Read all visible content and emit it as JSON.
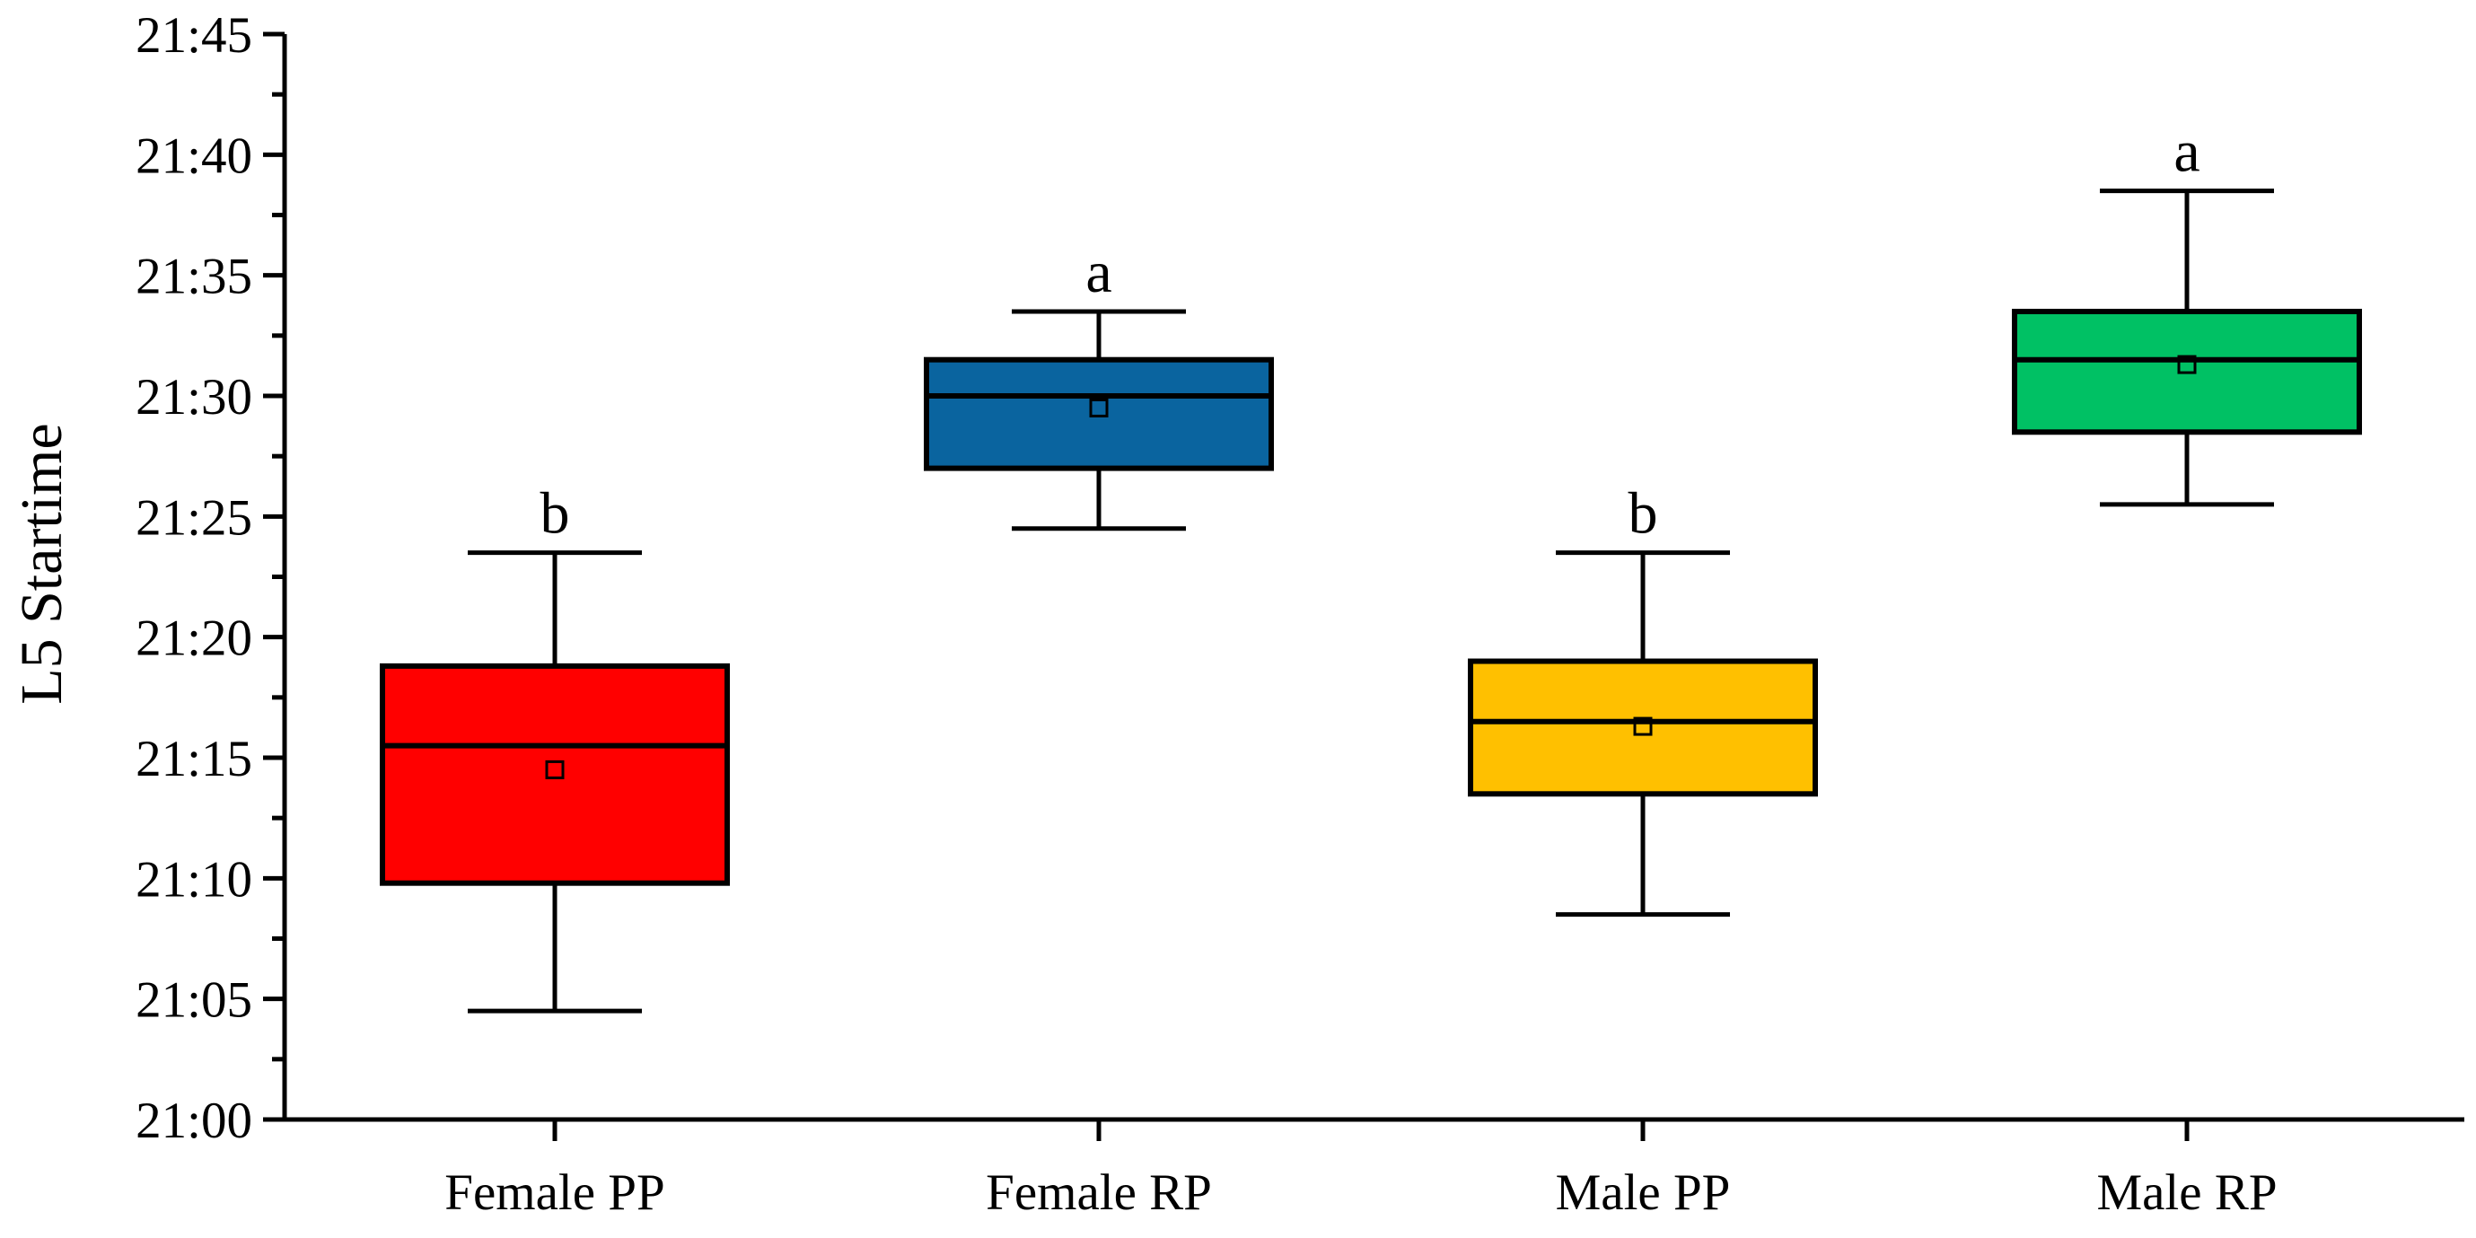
{
  "chart_data": {
    "type": "box",
    "title": "",
    "xlabel": "",
    "ylabel": "L5 Startime",
    "ylim_minutes": [
      0,
      45
    ],
    "y_tick_minutes": [
      0,
      5,
      10,
      15,
      20,
      25,
      30,
      35,
      40,
      45
    ],
    "y_tick_labels": [
      "21:00",
      "21:05",
      "21:10",
      "21:15",
      "21:20",
      "21:25",
      "21:30",
      "21:35",
      "21:40",
      "21:45"
    ],
    "y_unit_note": "values are minutes after 21:00",
    "categories": [
      "Female PP",
      "Female RP",
      "Male PP",
      "Male RP"
    ],
    "series": [
      {
        "name": "Female PP",
        "whisker_low": 4.5,
        "q1": 9.8,
        "median": 15.5,
        "q3": 18.8,
        "whisker_high": 23.5,
        "mean": 14.5,
        "color": "#FF0000",
        "significance": "b"
      },
      {
        "name": "Female RP",
        "whisker_low": 24.5,
        "q1": 27.0,
        "median": 30.0,
        "q3": 31.5,
        "whisker_high": 33.5,
        "mean": 29.5,
        "color": "#0A649F",
        "significance": "a"
      },
      {
        "name": "Male PP",
        "whisker_low": 8.5,
        "q1": 13.5,
        "median": 16.5,
        "q3": 19.0,
        "whisker_high": 23.5,
        "mean": 16.3,
        "color": "#FFC000",
        "significance": "b"
      },
      {
        "name": "Male RP",
        "whisker_low": 25.5,
        "q1": 28.5,
        "median": 31.5,
        "q3": 33.5,
        "whisker_high": 38.5,
        "mean": 31.3,
        "color": "#00C164",
        "significance": "a"
      }
    ]
  }
}
